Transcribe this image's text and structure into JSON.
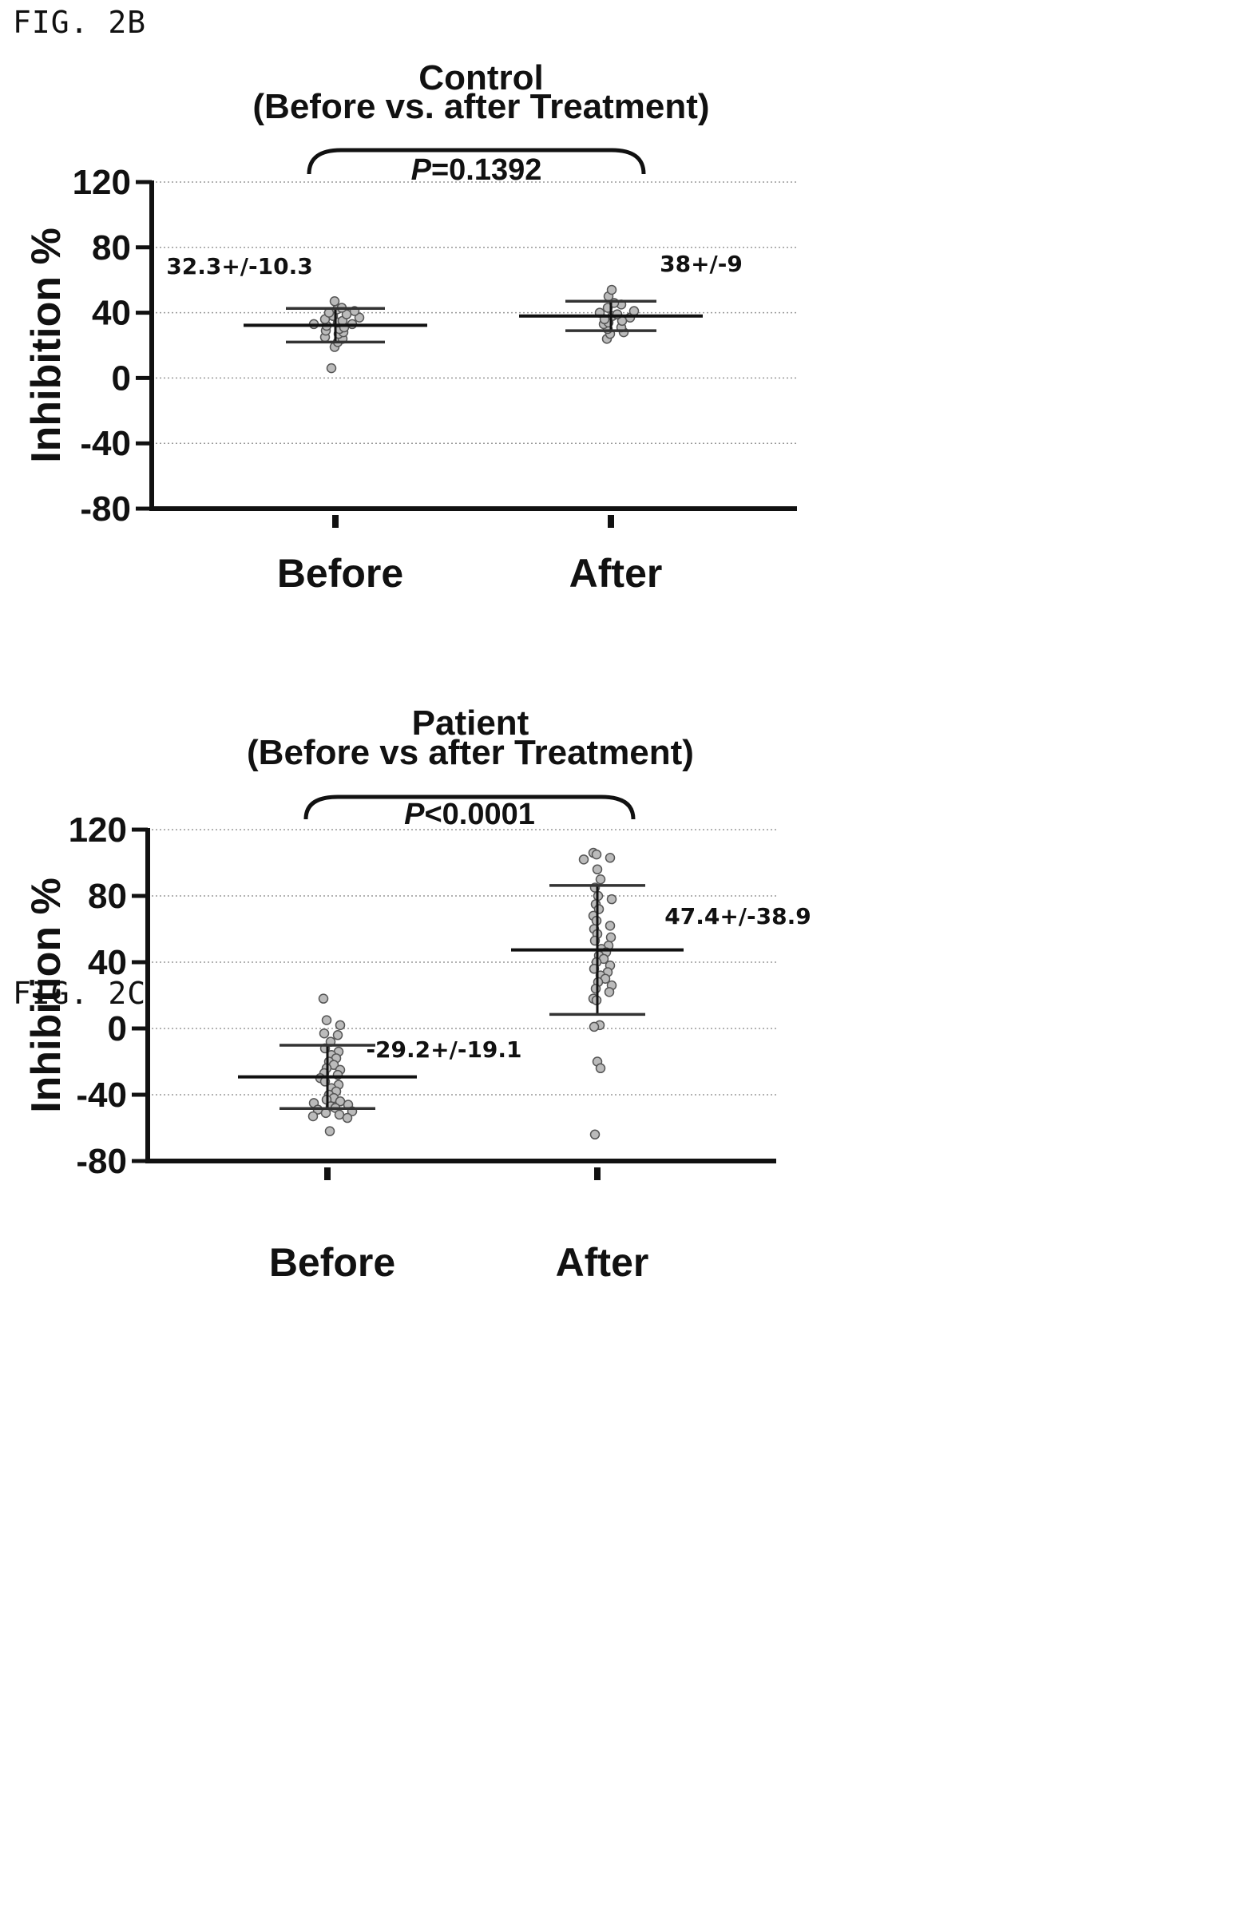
{
  "figures": [
    {
      "label": "FIG. 2B"
    },
    {
      "label": "FIG. 2C"
    }
  ],
  "chart_data": [
    {
      "type": "scatter",
      "title": "Control",
      "subtitle": "(Before vs. after Treatment)",
      "xlabel": "",
      "ylabel": "Inhibition %",
      "ylim": [
        -80,
        120
      ],
      "yticks": [
        120,
        80,
        40,
        0,
        -40,
        -80
      ],
      "grid": true,
      "categories": [
        "Before",
        "After"
      ],
      "p_value": {
        "symbol": "P",
        "text": "=0.1392"
      },
      "series": [
        {
          "category": "Before",
          "mean": 32.3,
          "sd": 10.3,
          "stat_label": "32.3+/-10.3",
          "values": [
            6,
            19,
            22,
            24,
            25,
            27,
            28,
            29,
            30,
            31,
            32,
            33,
            33,
            34,
            35,
            36,
            37,
            38,
            39,
            40,
            41,
            42,
            43,
            47
          ]
        },
        {
          "category": "After",
          "mean": 38,
          "sd": 9,
          "stat_label": "38+/-9",
          "values": [
            24,
            27,
            28,
            30,
            31,
            33,
            34,
            35,
            36,
            37,
            38,
            39,
            40,
            41,
            43,
            45,
            46,
            50,
            54
          ]
        }
      ]
    },
    {
      "type": "scatter",
      "title": "Patient",
      "subtitle": "(Before vs after Treatment)",
      "xlabel": "",
      "ylabel": "Inhibition %",
      "ylim": [
        -80,
        120
      ],
      "yticks": [
        120,
        80,
        40,
        0,
        -40,
        -80
      ],
      "grid": true,
      "categories": [
        "Before",
        "After"
      ],
      "p_value": {
        "symbol": "P",
        "text": "<0.0001"
      },
      "series": [
        {
          "category": "Before",
          "mean": -29.2,
          "sd": 19.1,
          "stat_label": "-29.2+/-19.1",
          "values": [
            18,
            5,
            2,
            -3,
            -4,
            -8,
            -12,
            -14,
            -16,
            -18,
            -20,
            -22,
            -24,
            -25,
            -27,
            -28,
            -30,
            -32,
            -34,
            -36,
            -38,
            -40,
            -42,
            -43,
            -44,
            -45,
            -46,
            -47,
            -48,
            -49,
            -50,
            -51,
            -52,
            -53,
            -54,
            -62
          ]
        },
        {
          "category": "After",
          "mean": 47.4,
          "sd": 38.9,
          "stat_label": "47.4+/-38.9",
          "values": [
            106,
            105,
            103,
            102,
            96,
            90,
            85,
            80,
            78,
            75,
            72,
            68,
            65,
            62,
            60,
            57,
            55,
            53,
            50,
            48,
            46,
            44,
            42,
            40,
            38,
            36,
            34,
            32,
            30,
            28,
            26,
            24,
            22,
            18,
            17,
            2,
            1,
            -20,
            -24,
            -64
          ]
        }
      ]
    }
  ]
}
